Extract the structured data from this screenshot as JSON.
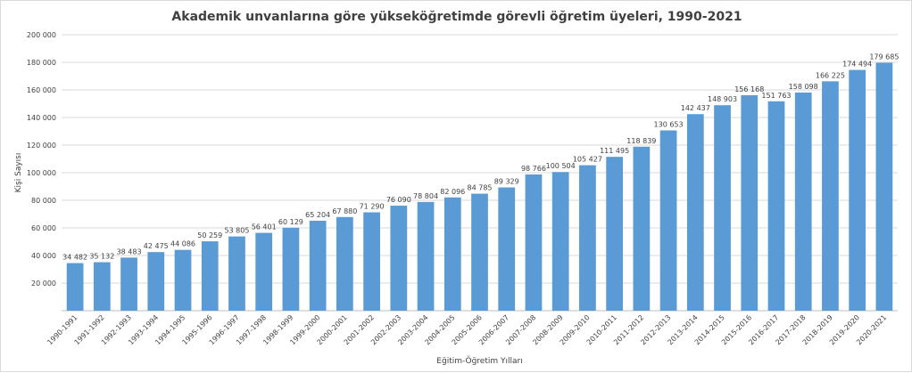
{
  "chart_data": {
    "type": "bar",
    "title": "Akademik unvanlarına göre yükseköğretimde görevli öğretim üyeleri, 1990-2021",
    "xlabel": "Eğitim-Öğretim Yılları",
    "ylabel": "Kişi Sayısı",
    "ylim": [
      0,
      200000
    ],
    "y_ticks": [
      0,
      20000,
      40000,
      60000,
      80000,
      100000,
      120000,
      140000,
      160000,
      180000,
      200000
    ],
    "y_tick_labels": [
      "",
      "20 000",
      "40 000",
      "60 000",
      "80 000",
      "100 000",
      "120 000",
      "140 000",
      "160 000",
      "180 000",
      "200 000"
    ],
    "grid": true,
    "legend": "none",
    "bar_color": "#5b9bd5",
    "categories": [
      "1990-1991",
      "1991-1992",
      "1992-1993",
      "1993-1994",
      "1994-1995",
      "1995-1996",
      "1996-1997",
      "1997-1998",
      "1998-1999",
      "1999-2000",
      "2000-2001",
      "2001-2002",
      "2002-2003",
      "2003-2004",
      "2004-2005",
      "2005-2006",
      "2006-2007",
      "2007-2008",
      "2008-2009",
      "2009-2010",
      "2010-2011",
      "2011-2012",
      "2012-2013",
      "2013-2014",
      "2014-2015",
      "2015-2016",
      "2016-2017",
      "2017-2018",
      "2018-2019",
      "2019-2020",
      "2020-2021"
    ],
    "values": [
      34482,
      35132,
      38483,
      42475,
      44086,
      50259,
      53805,
      56401,
      60129,
      65204,
      67880,
      71290,
      76090,
      78804,
      82096,
      84785,
      89329,
      98766,
      100504,
      105427,
      111495,
      118839,
      130653,
      142437,
      148903,
      156168,
      151763,
      158098,
      166225,
      174494,
      179685
    ],
    "value_labels": [
      "34 482",
      "35 132",
      "38 483",
      "42 475",
      "44 086",
      "50 259",
      "53 805",
      "56 401",
      "60 129",
      "65 204",
      "67 880",
      "71 290",
      "76 090",
      "78 804",
      "82 096",
      "84 785",
      "89 329",
      "98 766",
      "100 504",
      "105 427",
      "111 495",
      "118 839",
      "130 653",
      "142 437",
      "148 903",
      "156 168",
      "151 763",
      "158 098",
      "166 225",
      "174 494",
      "179 685"
    ]
  }
}
